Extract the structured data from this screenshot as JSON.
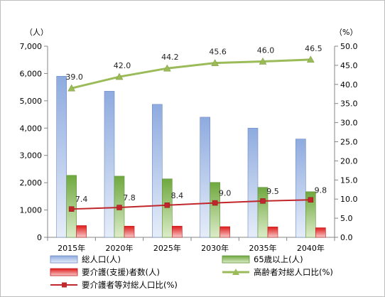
{
  "chart_data": {
    "type": "bar",
    "categories": [
      "2015年",
      "2020年",
      "2025年",
      "2030年",
      "2035年",
      "2040年"
    ],
    "y_left": {
      "unit_label": "（人）",
      "range": [
        0,
        7000
      ],
      "ticks": [
        "0",
        "1,000",
        "2,000",
        "3,000",
        "4,000",
        "5,000",
        "6,000",
        "7,000"
      ]
    },
    "y_right": {
      "unit_label": "（%）",
      "range": [
        0,
        50
      ],
      "ticks": [
        "0.0",
        "5.0",
        "10.0",
        "15.0",
        "20.0",
        "25.0",
        "30.0",
        "35.0",
        "40.0",
        "45.0",
        "50.0"
      ]
    },
    "series": [
      {
        "name": "総人口(人)",
        "kind": "bar",
        "axis": "left",
        "color": "#7f9fd6",
        "values": [
          5900,
          5350,
          4870,
          4400,
          4000,
          3600
        ]
      },
      {
        "name": "65歳以上(人)",
        "kind": "bar",
        "axis": "left",
        "color": "#7ab04e",
        "values": [
          2270,
          2240,
          2140,
          2010,
          1830,
          1670
        ]
      },
      {
        "name": "要介護(支援)者数(人)",
        "kind": "bar",
        "axis": "left",
        "color": "#e02020",
        "values": [
          430,
          410,
          410,
          390,
          380,
          350
        ]
      },
      {
        "name": "高齢者対総人口比(%)",
        "kind": "line",
        "axis": "right",
        "color": "#9bbb59",
        "values": [
          39.0,
          42.0,
          44.2,
          45.6,
          46.0,
          46.5
        ],
        "labels": [
          "39.0",
          "42.0",
          "44.2",
          "45.6",
          "46.0",
          "46.5"
        ]
      },
      {
        "name": "要介護者等対総人口比(%)",
        "kind": "line",
        "axis": "right",
        "color": "#c0262b",
        "values": [
          7.4,
          7.8,
          8.4,
          9.0,
          9.5,
          9.8
        ],
        "labels": [
          "7.4",
          "7.8",
          "8.4",
          "9.0",
          "9.5",
          "9.8"
        ]
      }
    ],
    "grid": false,
    "legend_position": "bottom"
  }
}
